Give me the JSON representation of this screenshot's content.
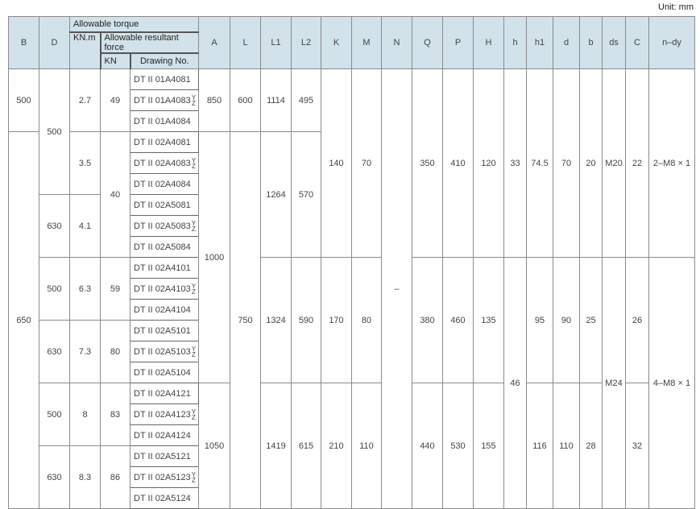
{
  "unit_label": "Unit: mm",
  "header": {
    "B": "B",
    "D": "D",
    "torque": "Allowable torque",
    "torque_unit": "KN.m",
    "force": "Allowable resultant force",
    "force_unit": "KN",
    "drawing": "Drawing No.",
    "A": "A",
    "L": "L",
    "L1": "L1",
    "L2": "L2",
    "K": "K",
    "M": "M",
    "N": "N",
    "Q": "Q",
    "P": "P",
    "H": "H",
    "h": "h",
    "h1": "h1",
    "d": "d",
    "b": "b",
    "ds": "ds",
    "C": "C",
    "ndy": "n–dy"
  },
  "drawing_numbers": [
    {
      "no": "DT II 01A4081"
    },
    {
      "no": "DT II 01A4083",
      "sup": "Y",
      "sub": "Z"
    },
    {
      "no": "DT II 01A4084"
    },
    {
      "no": "DT II 02A4081"
    },
    {
      "no": "DT II 02A4083",
      "sup": "Y",
      "sub": "Z"
    },
    {
      "no": "DT II 02A4084"
    },
    {
      "no": "DT II 02A5081"
    },
    {
      "no": "DT II 02A5083",
      "sup": "Y",
      "sub": "Z"
    },
    {
      "no": "DT II 02A5084"
    },
    {
      "no": "DT II 02A4101"
    },
    {
      "no": "DT II 02A4103",
      "sup": "Y",
      "sub": "Z"
    },
    {
      "no": "DT II 02A4104"
    },
    {
      "no": "DT II 02A5101"
    },
    {
      "no": "DT II 02A5103",
      "sup": "Y",
      "sub": "Z"
    },
    {
      "no": "DT II 02A5104"
    },
    {
      "no": "DT II 02A4121"
    },
    {
      "no": "DT II 02A4123",
      "sup": "Y",
      "sub": "Z"
    },
    {
      "no": "DT II 02A4124"
    },
    {
      "no": "DT II 02A5121"
    },
    {
      "no": "DT II 02A5123",
      "sup": "Y",
      "sub": "Z"
    },
    {
      "no": "DT II 02A5124"
    }
  ],
  "values": {
    "B": [
      "500",
      "650"
    ],
    "D": [
      "500",
      "630",
      "500",
      "630",
      "500",
      "630"
    ],
    "torque": [
      "2.7",
      "3.5",
      "4.1",
      "6.3",
      "7.3",
      "8",
      "8.3"
    ],
    "force": [
      "49",
      "40",
      "59",
      "80",
      "83",
      "86"
    ],
    "A": [
      "850",
      "1000",
      "1050"
    ],
    "L": [
      "600",
      "750"
    ],
    "L1": [
      "1114",
      "1264",
      "1324",
      "1419"
    ],
    "L2": [
      "495",
      "570",
      "590",
      "615"
    ],
    "K": [
      "140",
      "170",
      "210"
    ],
    "M": [
      "70",
      "80",
      "110"
    ],
    "N": [
      "–"
    ],
    "Q": [
      "350",
      "380",
      "440"
    ],
    "P": [
      "410",
      "460",
      "530"
    ],
    "H": [
      "120",
      "135",
      "155"
    ],
    "h": [
      "33",
      "46"
    ],
    "h1": [
      "74.5",
      "95",
      "116"
    ],
    "d": [
      "70",
      "90",
      "110"
    ],
    "b": [
      "20",
      "25",
      "28"
    ],
    "ds": [
      "M20",
      "M24"
    ],
    "C": [
      "22",
      "26",
      "32"
    ],
    "ndy": [
      "2–M8 × 1",
      "4–M8 × 1"
    ]
  }
}
